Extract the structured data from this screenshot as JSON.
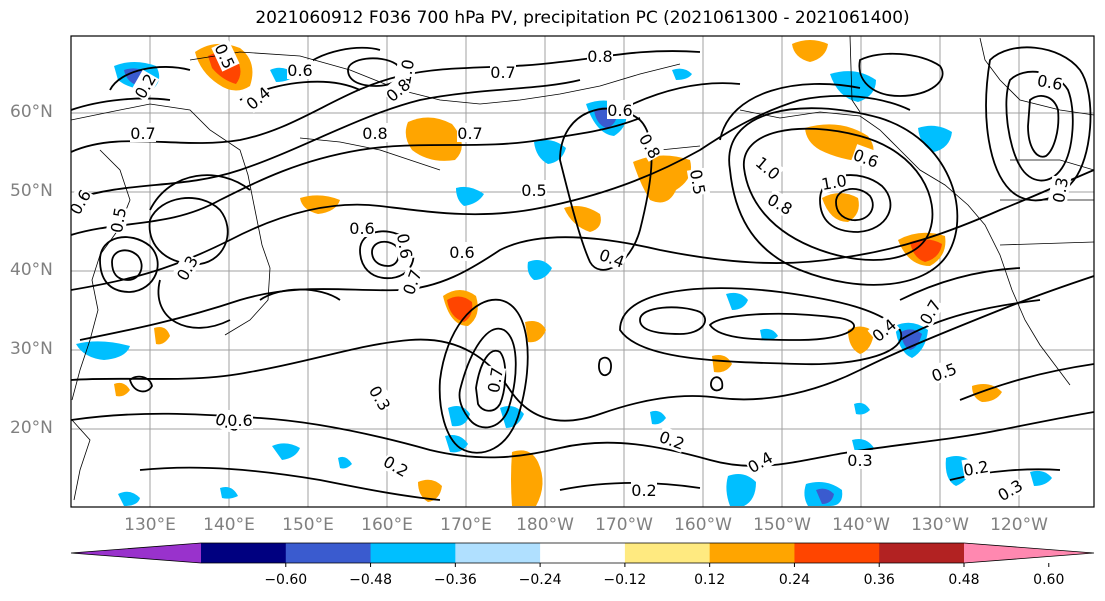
{
  "title": "2021060912 F036 700 hPa PV, precipitation PC (2021061300 - 2021061400)",
  "lat_labels": [
    "60°N",
    "50°N",
    "40°N",
    "30°N",
    "20°N"
  ],
  "lon_labels": [
    "130°E",
    "140°E",
    "150°E",
    "160°E",
    "170°E",
    "180°W",
    "170°W",
    "160°W",
    "150°W",
    "140°W",
    "130°W",
    "120°W"
  ],
  "colorbar": {
    "colors": [
      "#9932cc",
      "#000080",
      "#3a5bcf",
      "#00bfff",
      "#b0e0ff",
      "#ffffff",
      "#ffea80",
      "#ffa500",
      "#ff4500",
      "#b22222",
      "#ff88b0"
    ],
    "tick_labels": [
      "−0.60",
      "−0.48",
      "−0.36",
      "−0.24",
      "−0.12",
      "0.12",
      "0.24",
      "0.36",
      "0.48",
      "0.60"
    ]
  },
  "contour_labels": [
    "0.5",
    "0.4",
    "1.0",
    "0.7",
    "0.6",
    "0.6",
    "0.2",
    "0.7",
    "0.8",
    "0.7",
    "0.8",
    "0.6",
    "0.5",
    "0.6",
    "0.3",
    "0.6",
    "0.6",
    "0.7",
    "0.8",
    "0.4",
    "0.5",
    "0.5",
    "1.0",
    "0.8",
    "1.0",
    "0.6",
    "0.3",
    "0.3",
    "0.2",
    "0.3",
    "0.2",
    "0.3",
    "0.4",
    "0.2",
    "0.2",
    "0.3",
    "0.6",
    "0.7",
    "0.5",
    "0.4",
    "0.6",
    "0.8",
    "0.7"
  ]
}
